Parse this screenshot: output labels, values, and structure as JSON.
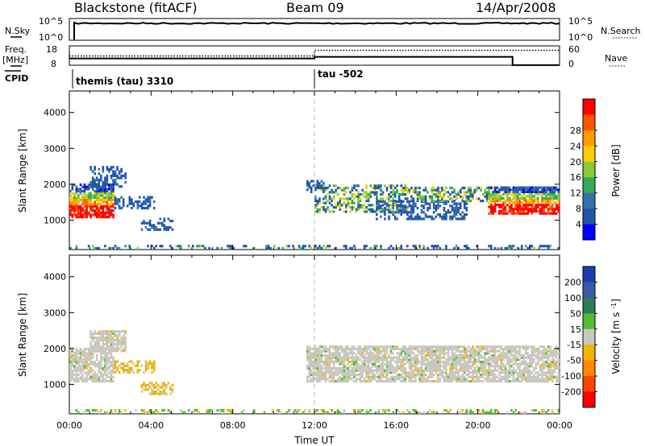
{
  "header": {
    "station": "Blackstone (fitACF)",
    "beam": "Beam 09",
    "date": "14/Apr/2008"
  },
  "status_panels": {
    "nsky_label": "N.Sky",
    "nsearch_label": "N.Search",
    "nsky_ticks": [
      "10^5",
      "10^0"
    ],
    "nsearch_ticks": [
      "10^5",
      "10^0"
    ],
    "freq_label_top": "Freq.",
    "freq_label_unit": "[MHz]",
    "freq_ticks": [
      "18",
      "8"
    ],
    "nave_label": "Nave",
    "nave_ticks": [
      "60",
      "0"
    ],
    "cpid_label": "CPID",
    "cpid_entries": [
      {
        "label": "themis (tau) 3310",
        "start_hour": 0
      },
      {
        "label": "tau -502",
        "start_hour": 12
      }
    ]
  },
  "chart_data": [
    {
      "type": "heatmap",
      "name": "power",
      "ylabel": "Slant Range [km]",
      "xlabel": "",
      "xlim": [
        0,
        24
      ],
      "ylim": [
        180,
        4600
      ],
      "yticks": [
        1000,
        2000,
        3000,
        4000
      ],
      "colorbar": {
        "label": "Power [dB]",
        "ticks": [
          "4",
          "8",
          "12",
          "16",
          "20",
          "24",
          "28"
        ],
        "range": [
          0,
          32
        ],
        "colors": [
          "#0000ff",
          "#2255aa",
          "#3a6ea8",
          "#33aa55",
          "#88cc33",
          "#ffcc00",
          "#ff9900",
          "#ff5500",
          "#ff0000"
        ]
      },
      "echo_regions": [
        {
          "t0": 0.0,
          "t1": 2.2,
          "r0": 1050,
          "r1": 2000,
          "kind": "high"
        },
        {
          "t0": 1.0,
          "t1": 2.8,
          "r0": 1900,
          "r1": 2450,
          "kind": "low"
        },
        {
          "t0": 2.2,
          "t1": 4.2,
          "r0": 1300,
          "r1": 1650,
          "kind": "low"
        },
        {
          "t0": 3.5,
          "t1": 5.0,
          "r0": 700,
          "r1": 1050,
          "kind": "low"
        },
        {
          "t0": 11.6,
          "t1": 12.4,
          "r0": 1750,
          "r1": 2100,
          "kind": "low"
        },
        {
          "t0": 12.0,
          "t1": 16.5,
          "r0": 1200,
          "r1": 1950,
          "kind": "mid"
        },
        {
          "t0": 15.0,
          "t1": 19.5,
          "r0": 1000,
          "r1": 1500,
          "kind": "low"
        },
        {
          "t0": 16.5,
          "t1": 21.0,
          "r0": 1500,
          "r1": 1900,
          "kind": "mid"
        },
        {
          "t0": 20.5,
          "t1": 24.0,
          "r0": 1150,
          "r1": 1900,
          "kind": "high"
        },
        {
          "t0": 0.0,
          "t1": 24.0,
          "r0": 180,
          "r1": 280,
          "kind": "ground"
        }
      ]
    },
    {
      "type": "heatmap",
      "name": "velocity",
      "ylabel": "Slant Range [km]",
      "xlabel": "Time UT",
      "xlim": [
        0,
        24
      ],
      "ylim": [
        180,
        4600
      ],
      "yticks": [
        1000,
        2000,
        3000,
        4000
      ],
      "xtick_labels": [
        "00:00",
        "04:00",
        "08:00",
        "12:00",
        "16:00",
        "20:00",
        "00:00"
      ],
      "colorbar": {
        "label": "Velocity [m s^-1]",
        "ticks": [
          "200",
          "100",
          "50",
          "15",
          "-15",
          "-50",
          "-100",
          "-200"
        ],
        "colors": [
          "#1a3fb0",
          "#3a5aa8",
          "#2f7a5a",
          "#55bb33",
          "#c8c8c0",
          "#f0b400",
          "#ff8800",
          "#ff4400",
          "#ff0000"
        ]
      },
      "echo_regions": [
        {
          "t0": 0.0,
          "t1": 2.2,
          "r0": 1050,
          "r1": 2000,
          "kind": "grey"
        },
        {
          "t0": 1.0,
          "t1": 2.8,
          "r0": 1900,
          "r1": 2450,
          "kind": "grey"
        },
        {
          "t0": 2.2,
          "t1": 4.2,
          "r0": 1300,
          "r1": 1650,
          "kind": "orange"
        },
        {
          "t0": 3.5,
          "t1": 5.0,
          "r0": 700,
          "r1": 1050,
          "kind": "orange"
        },
        {
          "t0": 11.6,
          "t1": 24.0,
          "r0": 1050,
          "r1": 2050,
          "kind": "grey"
        },
        {
          "t0": 0.0,
          "t1": 24.0,
          "r0": 180,
          "r1": 280,
          "kind": "ground"
        }
      ]
    }
  ],
  "series_traces": {
    "nsky_level": 0.78,
    "freq_nave_switch_hour": 12.0,
    "nave_before": 0.52,
    "nave_after": 0.23,
    "freq_before": 0.35,
    "freq_after": 0.17,
    "freq_step_hour": 21.7
  }
}
